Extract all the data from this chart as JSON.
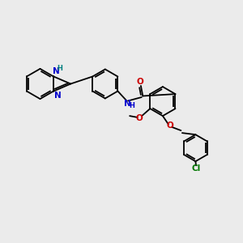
{
  "bg_color": "#ebebeb",
  "bond_color": "#000000",
  "N_color": "#0000cc",
  "O_color": "#cc0000",
  "Cl_color": "#007700",
  "NH_color": "#008080",
  "font_size": 7.5,
  "line_width": 1.3,
  "xlim": [
    0,
    10
  ],
  "ylim": [
    0,
    10
  ]
}
